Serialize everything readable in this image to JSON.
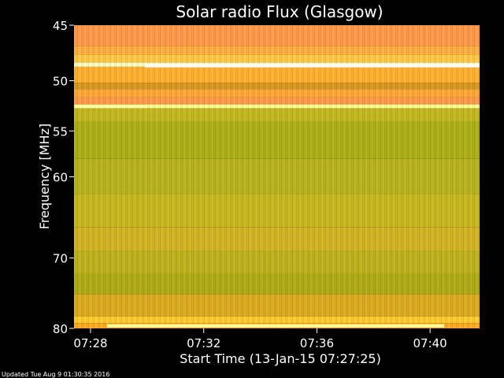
{
  "chart_data": {
    "type": "heatmap",
    "title": "Solar radio Flux (Glasgow)",
    "xlabel": "Start Time (13-Jan-15 07:27:25)",
    "ylabel": "Frequency [MHz]",
    "x_ticks": [
      "07:28",
      "07:32",
      "07:36",
      "07:40"
    ],
    "y_ticks": [
      45,
      50,
      55,
      60,
      70,
      80
    ],
    "ylim": [
      45,
      80
    ],
    "y_scale": "log",
    "xlim": [
      "07:27:25",
      "07:41:45"
    ],
    "grid": false,
    "bands": [
      {
        "f0": 45.0,
        "f1": 46.8,
        "color": "#ff9a4a"
      },
      {
        "f0": 46.8,
        "f1": 47.6,
        "color": "#ffb040"
      },
      {
        "f0": 47.6,
        "f1": 48.3,
        "color": "#ffc848"
      },
      {
        "f0": 48.3,
        "f1": 48.7,
        "color": "#ffffc0"
      },
      {
        "f0": 48.7,
        "f1": 50.2,
        "color": "#ffb030"
      },
      {
        "f0": 50.2,
        "f1": 50.8,
        "color": "#d89a20"
      },
      {
        "f0": 50.8,
        "f1": 51.6,
        "color": "#ffa838"
      },
      {
        "f0": 51.6,
        "f1": 52.3,
        "color": "#ff9a4a"
      },
      {
        "f0": 52.3,
        "f1": 52.7,
        "color": "#ffff90"
      },
      {
        "f0": 52.7,
        "f1": 54.0,
        "color": "#c4b820"
      },
      {
        "f0": 54.0,
        "f1": 58.0,
        "color": "#aeb018"
      },
      {
        "f0": 58.0,
        "f1": 62.0,
        "color": "#b8b420"
      },
      {
        "f0": 62.0,
        "f1": 66.0,
        "color": "#c8b820"
      },
      {
        "f0": 66.0,
        "f1": 69.0,
        "color": "#d2b424"
      },
      {
        "f0": 69.0,
        "f1": 72.0,
        "color": "#c0b21e"
      },
      {
        "f0": 72.0,
        "f1": 75.0,
        "color": "#b0ac18"
      },
      {
        "f0": 75.0,
        "f1": 78.2,
        "color": "#dcac20"
      },
      {
        "f0": 78.2,
        "f1": 79.2,
        "color": "#ffcc30"
      },
      {
        "f0": 79.2,
        "f1": 80.0,
        "color": "#ffaa20"
      }
    ],
    "bright_lines": [
      {
        "freq": 48.6,
        "t_start": "07:29:55",
        "t_end": "07:41:45",
        "color": "#ffffff"
      },
      {
        "freq": 52.5,
        "t_start": "07:27:25",
        "t_end": "07:29:55",
        "color": "#ffffa0"
      },
      {
        "freq": 79.6,
        "t_start": "07:28:35",
        "t_end": "07:40:30",
        "color": "#ffffa0"
      }
    ],
    "footer": "Updated Tue Aug  9 01:30:35 2016"
  }
}
